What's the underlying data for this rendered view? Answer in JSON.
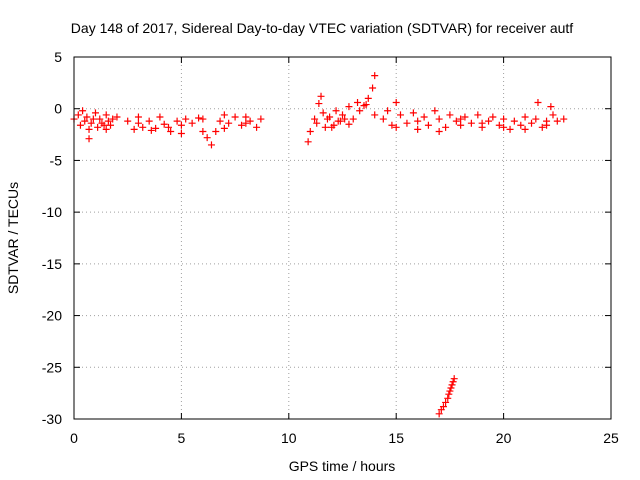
{
  "chart_data": {
    "type": "scatter",
    "title": "Day 148 of 2017, Sidereal Day-to-day VTEC variation (SDTVAR) for receiver autf",
    "xlabel": "GPS time / hours",
    "ylabel": "SDTVAR / TECUs",
    "xlim": [
      0,
      25
    ],
    "ylim": [
      -30,
      5
    ],
    "xticks": [
      "0",
      "5",
      "10",
      "15",
      "20",
      "25"
    ],
    "yticks": [
      "5",
      "0",
      "-5",
      "-10",
      "-15",
      "-20",
      "-25",
      "-30"
    ],
    "grid": true,
    "marker": "+",
    "series_color": "#ff0000",
    "series": [
      {
        "name": "segment-1",
        "x": [
          0.0,
          0.2,
          0.4,
          0.6,
          0.7,
          0.8,
          1.0,
          1.2,
          1.4,
          1.5,
          1.6,
          1.8,
          2.0,
          0.3,
          0.5,
          0.7,
          0.9,
          1.1,
          1.3,
          1.5,
          1.7
        ],
        "y": [
          -1.0,
          -0.6,
          -0.2,
          -0.8,
          -2.9,
          -1.4,
          -0.4,
          -1.0,
          -1.6,
          -0.6,
          -1.2,
          -1.0,
          -0.8,
          -1.6,
          -1.2,
          -2.0,
          -1.0,
          -1.8,
          -1.4,
          -2.0,
          -1.6
        ]
      },
      {
        "name": "segment-2",
        "x": [
          2.5,
          2.8,
          3.0,
          3.2,
          3.5,
          3.8,
          4.0,
          4.2,
          4.5,
          4.8,
          5.0,
          5.2,
          5.5,
          5.8,
          6.0,
          6.2,
          6.4,
          6.6,
          6.8,
          7.0,
          7.2,
          7.5,
          7.8,
          8.0,
          8.2,
          8.5,
          8.7,
          3.0,
          3.6,
          4.4,
          5.0,
          6.0,
          7.0,
          8.0
        ],
        "y": [
          -1.2,
          -2.0,
          -0.8,
          -1.8,
          -1.2,
          -1.9,
          -0.8,
          -1.5,
          -2.2,
          -1.2,
          -1.6,
          -1.0,
          -1.4,
          -0.9,
          -2.2,
          -2.8,
          -3.5,
          -2.2,
          -1.2,
          -0.6,
          -1.4,
          -0.8,
          -1.6,
          -0.8,
          -1.2,
          -1.8,
          -1.0,
          -1.4,
          -2.1,
          -1.8,
          -2.4,
          -1.0,
          -1.9,
          -1.4
        ]
      },
      {
        "name": "segment-3",
        "x": [
          10.9,
          11.0,
          11.2,
          11.4,
          11.5,
          11.7,
          11.9,
          12.1,
          12.3,
          12.5,
          12.8,
          13.0,
          13.3,
          13.5,
          13.7,
          13.9,
          14.0,
          11.6,
          11.8,
          12.0,
          12.4,
          12.8,
          13.2,
          13.6,
          14.0,
          11.3,
          12.2,
          12.6
        ],
        "y": [
          -3.2,
          -2.2,
          -1.0,
          0.5,
          1.2,
          -1.8,
          -0.8,
          -1.6,
          -1.2,
          -0.6,
          -1.5,
          -1.0,
          -0.2,
          0.3,
          1.0,
          2.0,
          3.2,
          -0.4,
          -1.0,
          -1.8,
          -1.2,
          0.2,
          0.6,
          0.4,
          -0.6,
          -1.4,
          -0.2,
          -1.0
        ]
      },
      {
        "name": "segment-4",
        "x": [
          14.4,
          14.6,
          14.8,
          15.0,
          15.2,
          15.5,
          15.8,
          16.0,
          16.3,
          16.5,
          16.8,
          17.0,
          17.3,
          17.5,
          17.8,
          18.0,
          18.2,
          18.5,
          18.8,
          19.0,
          19.3,
          19.5,
          19.8,
          20.0,
          20.3,
          20.5,
          20.8,
          21.0,
          21.3,
          21.5,
          21.8,
          22.0,
          22.3,
          22.5,
          22.8,
          15.0,
          16.0,
          17.0,
          18.0,
          19.0,
          20.0,
          21.0,
          22.0,
          21.6,
          22.2
        ],
        "y": [
          -1.0,
          -0.2,
          -1.6,
          0.6,
          -0.6,
          -1.4,
          -0.4,
          -2.0,
          -0.8,
          -1.6,
          -0.2,
          -1.0,
          -1.8,
          -0.6,
          -1.2,
          -1.6,
          -0.8,
          -1.4,
          -0.6,
          -1.8,
          -1.2,
          -0.8,
          -1.6,
          -1.0,
          -2.0,
          -1.2,
          -1.6,
          -0.8,
          -1.4,
          -1.0,
          -1.8,
          -1.2,
          -0.6,
          -1.2,
          -1.0,
          -1.8,
          -1.2,
          -2.2,
          -1.0,
          -1.4,
          -1.8,
          -2.0,
          -1.6,
          0.6,
          0.2
        ]
      },
      {
        "name": "segment-5",
        "x": [
          17.0,
          17.1,
          17.2,
          17.3,
          17.4,
          17.45,
          17.5,
          17.55,
          17.6,
          17.65,
          17.7
        ],
        "y": [
          -29.5,
          -29.1,
          -28.8,
          -28.4,
          -28.0,
          -27.6,
          -27.3,
          -27.0,
          -26.7,
          -26.4,
          -26.1
        ]
      }
    ]
  }
}
